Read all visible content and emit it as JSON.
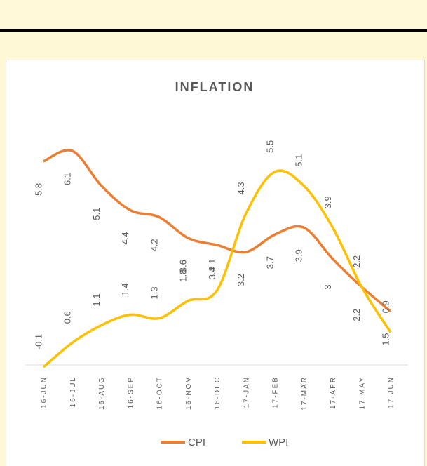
{
  "chart_data": {
    "type": "line",
    "title": "INFLATION",
    "categories": [
      "16-JUN",
      "16-JUL",
      "16-AUG",
      "16-SEP",
      "16-OCT",
      "16-NOV",
      "16-DEC",
      "17-JAN",
      "17-FEB",
      "17-MAR",
      "17-APR",
      "17-MAY",
      "17-JUN"
    ],
    "series": [
      {
        "name": "CPI",
        "color": "#ED7D31",
        "values": [
          5.8,
          6.1,
          5.1,
          4.4,
          4.2,
          3.6,
          3.4,
          3.2,
          3.7,
          3.9,
          3.0,
          2.2,
          1.5
        ]
      },
      {
        "name": "WPI",
        "color": "#FFC000",
        "values": [
          -0.1,
          0.6,
          1.1,
          1.4,
          1.3,
          1.8,
          2.1,
          4.3,
          5.5,
          5.1,
          3.9,
          2.2,
          0.9
        ]
      }
    ],
    "ylim": [
      -0.2,
      6.2
    ],
    "legend": "bottom"
  }
}
